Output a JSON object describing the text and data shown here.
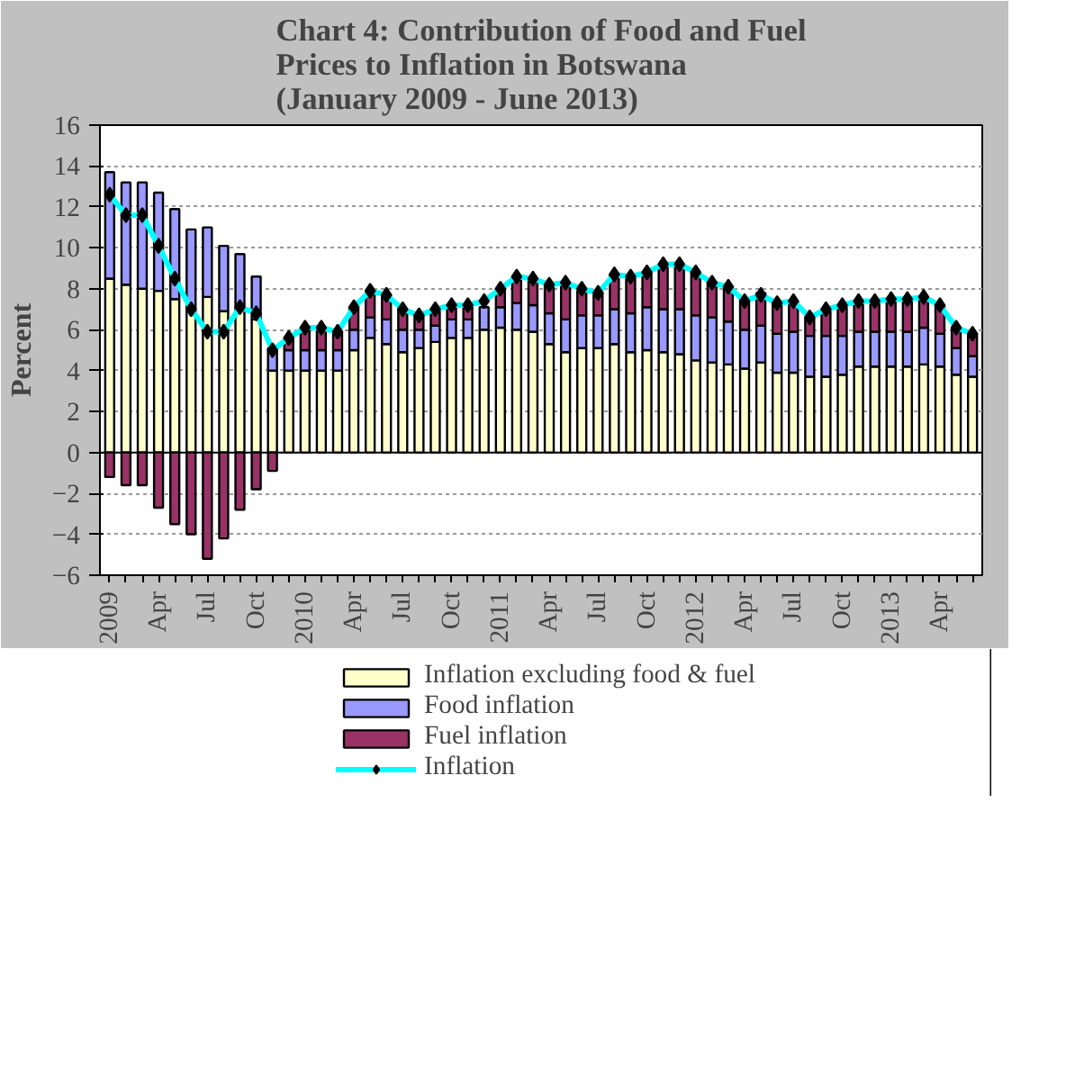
{
  "chart_data": {
    "type": "bar",
    "title": "Chart 4: Contribution of Food and Fuel\nPrices to Inflation in Botswana\n(January 2009 - June 2013)",
    "ylabel": "Percent",
    "categories": [
      "2009",
      null,
      null,
      "Apr",
      null,
      null,
      "Jul",
      null,
      null,
      "Oct",
      null,
      null,
      "2010",
      null,
      null,
      "Apr",
      null,
      null,
      "Jul",
      null,
      null,
      "Oct",
      null,
      null,
      "2011",
      null,
      null,
      "Apr",
      null,
      null,
      "Jul",
      null,
      null,
      "Oct",
      null,
      null,
      "2012",
      null,
      null,
      "Apr",
      null,
      null,
      "Jul",
      null,
      null,
      "Oct",
      null,
      null,
      "2013",
      null,
      null,
      "Apr",
      null,
      null
    ],
    "stacked": true,
    "ylim": [
      -6,
      16
    ],
    "yticks": [
      -6,
      -4,
      -2,
      0,
      2,
      4,
      6,
      8,
      10,
      12,
      14,
      16
    ],
    "grid": "y",
    "legend": "bottom",
    "series": [
      {
        "name": "Inflation excluding food & fuel",
        "color": "#ffffcc",
        "values": [
          8.5,
          8.2,
          8.0,
          7.9,
          7.5,
          7.1,
          7.6,
          6.9,
          7.1,
          6.5,
          4.0,
          4.0,
          4.0,
          4.0,
          4.0,
          5.0,
          5.6,
          5.3,
          4.9,
          5.1,
          5.4,
          5.6,
          5.6,
          6.0,
          6.1,
          6.0,
          5.9,
          5.3,
          4.9,
          5.1,
          5.1,
          5.3,
          4.9,
          5.0,
          4.9,
          4.8,
          4.5,
          4.4,
          4.3,
          4.1,
          4.4,
          3.9,
          3.9,
          3.7,
          3.7,
          3.8,
          4.2,
          4.2,
          4.2,
          4.2,
          4.3,
          4.2,
          3.8,
          3.7
        ]
      },
      {
        "name": "Food inflation",
        "color": "#9999ff",
        "values": [
          5.2,
          5.0,
          5.2,
          4.8,
          4.4,
          3.8,
          3.4,
          3.2,
          2.6,
          2.1,
          1.1,
          1.0,
          1.0,
          1.0,
          1.0,
          1.0,
          1.0,
          1.2,
          1.1,
          0.9,
          0.8,
          0.9,
          0.9,
          1.1,
          1.0,
          1.3,
          1.3,
          1.5,
          1.6,
          1.6,
          1.6,
          1.7,
          1.9,
          2.1,
          2.1,
          2.2,
          2.2,
          2.2,
          2.1,
          1.9,
          1.8,
          1.9,
          2.0,
          2.0,
          2.0,
          1.9,
          1.7,
          1.7,
          1.7,
          1.7,
          1.8,
          1.6,
          1.3,
          1.0
        ]
      },
      {
        "name": "Fuel inflation",
        "color": "#993366",
        "values": [
          -1.2,
          -1.6,
          -1.6,
          -2.7,
          -3.5,
          -4.0,
          -5.2,
          -4.2,
          -2.8,
          -1.8,
          -0.9,
          0.6,
          1.1,
          1.1,
          0.9,
          1.1,
          1.2,
          1.2,
          1.0,
          0.7,
          0.8,
          0.7,
          0.7,
          null,
          0.9,
          1.3,
          1.2,
          1.4,
          1.8,
          1.2,
          1.1,
          1.7,
          1.8,
          1.7,
          2.2,
          2.2,
          2.1,
          1.7,
          1.7,
          1.5,
          1.6,
          1.5,
          1.5,
          0.9,
          1.3,
          1.5,
          1.5,
          1.5,
          1.6,
          1.6,
          1.5,
          1.4,
          1.0,
          1.1
        ]
      },
      {
        "name": "Inflation",
        "type": "line",
        "color": "#00ffff",
        "marker": "diamond",
        "values": [
          12.6,
          11.6,
          11.6,
          10.1,
          8.5,
          7.0,
          5.9,
          5.9,
          7.1,
          6.8,
          5.0,
          5.6,
          6.1,
          6.1,
          5.9,
          7.1,
          7.9,
          7.7,
          7.0,
          6.7,
          7.0,
          7.2,
          7.2,
          7.4,
          8.0,
          8.6,
          8.5,
          8.2,
          8.3,
          8.0,
          7.8,
          8.7,
          8.6,
          8.8,
          9.2,
          9.2,
          8.8,
          8.3,
          8.1,
          7.4,
          7.7,
          7.3,
          7.4,
          6.6,
          7.0,
          7.2,
          7.4,
          7.4,
          7.5,
          7.5,
          7.6,
          7.2,
          6.1,
          5.8
        ]
      }
    ]
  }
}
